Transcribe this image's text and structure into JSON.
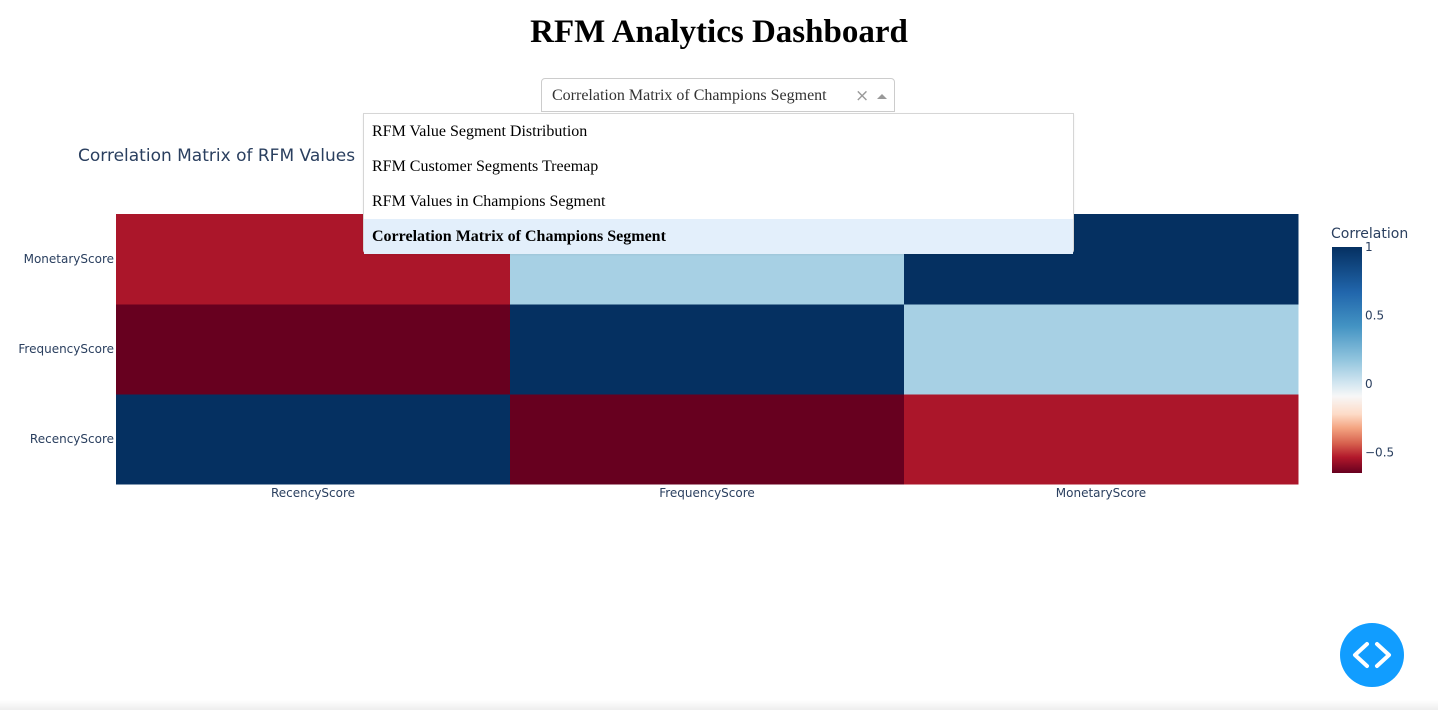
{
  "page": {
    "title": "RFM Analytics Dashboard"
  },
  "dropdown": {
    "selected": "Correlation Matrix of Champions Segment",
    "clear_symbol": "×",
    "options": [
      "RFM Value Segment Distribution",
      "RFM Customer Segments Treemap",
      "RFM Values in Champions Segment",
      "Correlation Matrix of Champions Segment"
    ],
    "selected_index": 3
  },
  "chart_data": {
    "type": "heatmap",
    "title": "Correlation Matrix of RFM Values",
    "x": [
      "RecencyScore",
      "FrequencyScore",
      "MonetaryScore"
    ],
    "y": [
      "RecencyScore",
      "FrequencyScore",
      "MonetaryScore"
    ],
    "z": [
      [
        1.0,
        -0.65,
        -0.5
      ],
      [
        -0.65,
        1.0,
        0.45
      ],
      [
        -0.5,
        0.45,
        1.0
      ]
    ],
    "colorscale": "RdBu",
    "zmin": -0.65,
    "zmax": 1.0,
    "colorbar": {
      "title": "Correlation",
      "ticks": [
        1,
        0.5,
        0,
        -0.5
      ],
      "tick_labels": [
        "1",
        "0.5",
        "0",
        "−0.5"
      ]
    }
  },
  "fab": {
    "icon": "code-icon",
    "color": "#119dff"
  }
}
